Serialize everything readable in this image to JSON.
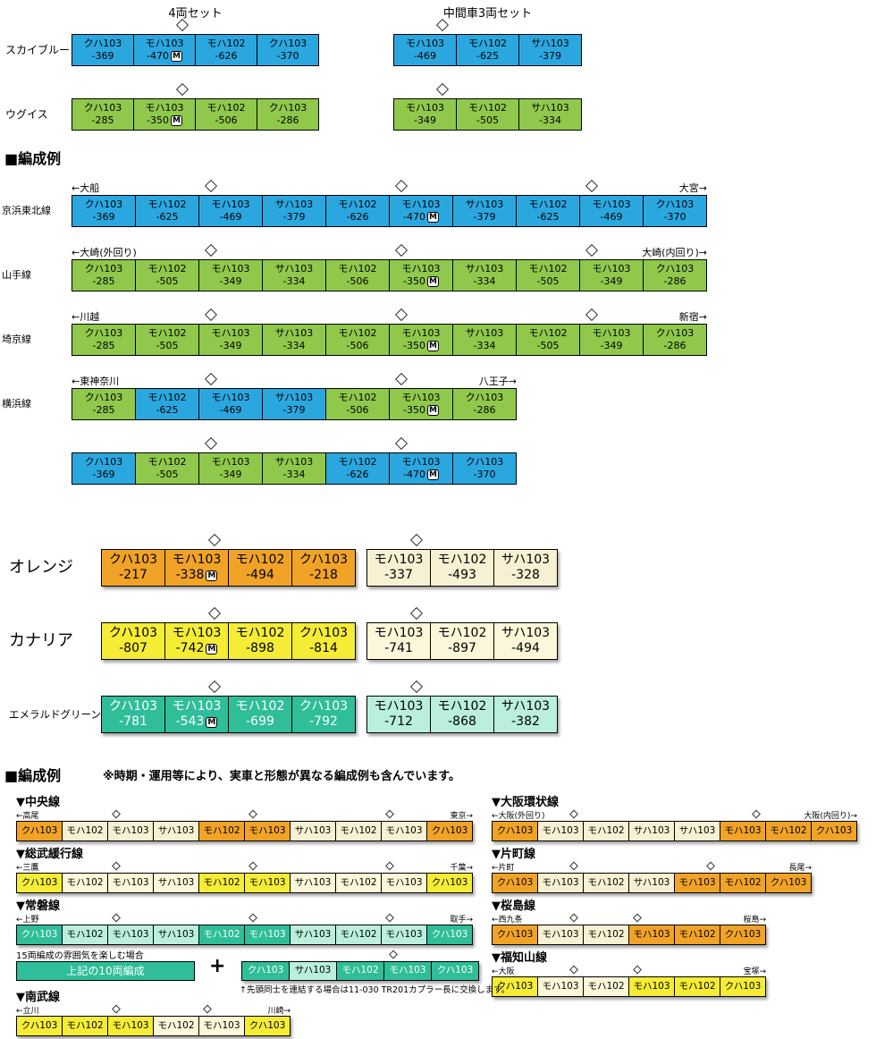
{
  "motor_badge": "M",
  "colors": {
    "skyblue": "#2BA7E0",
    "uguisu": "#8FC84B",
    "orange": "#F0A327",
    "orange_pale": "#F7F0D2",
    "canary": "#F5EC35",
    "canary_pale": "#FBF7D8",
    "emerald": "#2FBE99",
    "emerald_pale": "#B9EFDC"
  },
  "top_section": {
    "set4_header": "4両セット",
    "set3_header": "中間車3両セット",
    "rows": [
      {
        "label": "スカイブルー",
        "color": "skyblue",
        "set4": [
          {
            "type": "クハ103",
            "num": "-369"
          },
          {
            "type": "モハ103",
            "num": "-470",
            "m": true,
            "pan": true
          },
          {
            "type": "モハ102",
            "num": "-626"
          },
          {
            "type": "クハ103",
            "num": "-370"
          }
        ],
        "set3": [
          {
            "type": "モハ103",
            "num": "-469",
            "pan": true
          },
          {
            "type": "モハ102",
            "num": "-625"
          },
          {
            "type": "サハ103",
            "num": "-379"
          }
        ]
      },
      {
        "label": "ウグイス",
        "color": "uguisu",
        "set4": [
          {
            "type": "クハ103",
            "num": "-285"
          },
          {
            "type": "モハ103",
            "num": "-350",
            "m": true,
            "pan": true
          },
          {
            "type": "モハ102",
            "num": "-506"
          },
          {
            "type": "クハ103",
            "num": "-286"
          }
        ],
        "set3": [
          {
            "type": "モハ103",
            "num": "-349",
            "pan": true
          },
          {
            "type": "モハ102",
            "num": "-505"
          },
          {
            "type": "サハ103",
            "num": "-334"
          }
        ]
      }
    ]
  },
  "formation_section": {
    "heading": "■編成例",
    "rows": [
      {
        "label": "京浜東北線",
        "left_end": "←大船",
        "right_end": "大宮→",
        "cars": [
          {
            "type": "クハ103",
            "num": "-369",
            "color": "skyblue"
          },
          {
            "type": "モハ102",
            "num": "-625",
            "color": "skyblue"
          },
          {
            "type": "モハ103",
            "num": "-469",
            "color": "skyblue",
            "pan": true
          },
          {
            "type": "サハ103",
            "num": "-379",
            "color": "skyblue"
          },
          {
            "type": "モハ102",
            "num": "-626",
            "color": "skyblue"
          },
          {
            "type": "モハ103",
            "num": "-470",
            "color": "skyblue",
            "m": true,
            "pan": true
          },
          {
            "type": "サハ103",
            "num": "-379",
            "color": "skyblue"
          },
          {
            "type": "モハ102",
            "num": "-625",
            "color": "skyblue"
          },
          {
            "type": "モハ103",
            "num": "-469",
            "color": "skyblue",
            "pan": true
          },
          {
            "type": "クハ103",
            "num": "-370",
            "color": "skyblue"
          }
        ]
      },
      {
        "label": "山手線",
        "left_end": "←大崎(外回り)",
        "right_end": "大崎(内回り)→",
        "cars": [
          {
            "type": "クハ103",
            "num": "-285",
            "color": "uguisu"
          },
          {
            "type": "モハ102",
            "num": "-505",
            "color": "uguisu"
          },
          {
            "type": "モハ103",
            "num": "-349",
            "color": "uguisu",
            "pan": true
          },
          {
            "type": "サハ103",
            "num": "-334",
            "color": "uguisu"
          },
          {
            "type": "モハ102",
            "num": "-506",
            "color": "uguisu"
          },
          {
            "type": "モハ103",
            "num": "-350",
            "color": "uguisu",
            "m": true,
            "pan": true
          },
          {
            "type": "サハ103",
            "num": "-334",
            "color": "uguisu"
          },
          {
            "type": "モハ102",
            "num": "-505",
            "color": "uguisu"
          },
          {
            "type": "モハ103",
            "num": "-349",
            "color": "uguisu",
            "pan": true
          },
          {
            "type": "クハ103",
            "num": "-286",
            "color": "uguisu"
          }
        ]
      },
      {
        "label": "埼京線",
        "left_end": "←川越",
        "right_end": "新宿→",
        "cars": [
          {
            "type": "クハ103",
            "num": "-285",
            "color": "uguisu"
          },
          {
            "type": "モハ102",
            "num": "-505",
            "color": "uguisu"
          },
          {
            "type": "モハ103",
            "num": "-349",
            "color": "uguisu",
            "pan": true
          },
          {
            "type": "サハ103",
            "num": "-334",
            "color": "uguisu"
          },
          {
            "type": "モハ102",
            "num": "-506",
            "color": "uguisu"
          },
          {
            "type": "モハ103",
            "num": "-350",
            "color": "uguisu",
            "m": true,
            "pan": true
          },
          {
            "type": "サハ103",
            "num": "-334",
            "color": "uguisu"
          },
          {
            "type": "モハ102",
            "num": "-505",
            "color": "uguisu"
          },
          {
            "type": "モハ103",
            "num": "-349",
            "color": "uguisu",
            "pan": true
          },
          {
            "type": "クハ103",
            "num": "-286",
            "color": "uguisu"
          }
        ]
      },
      {
        "label": "横浜線",
        "left_end": "←東神奈川",
        "right_end": "八王子→",
        "cars": [
          {
            "type": "クハ103",
            "num": "-285",
            "color": "uguisu"
          },
          {
            "type": "モハ102",
            "num": "-625",
            "color": "skyblue"
          },
          {
            "type": "モハ103",
            "num": "-469",
            "color": "skyblue",
            "pan": true
          },
          {
            "type": "サハ103",
            "num": "-379",
            "color": "skyblue"
          },
          {
            "type": "モハ102",
            "num": "-506",
            "color": "uguisu"
          },
          {
            "type": "モハ103",
            "num": "-350",
            "color": "uguisu",
            "m": true,
            "pan": true
          },
          {
            "type": "クハ103",
            "num": "-286",
            "color": "uguisu"
          }
        ]
      },
      {
        "label": "",
        "left_end": "",
        "right_end": "",
        "cars": [
          {
            "type": "クハ103",
            "num": "-369",
            "color": "skyblue"
          },
          {
            "type": "モハ102",
            "num": "-505",
            "color": "uguisu"
          },
          {
            "type": "モハ103",
            "num": "-349",
            "color": "uguisu",
            "pan": true
          },
          {
            "type": "サハ103",
            "num": "-334",
            "color": "uguisu"
          },
          {
            "type": "モハ102",
            "num": "-626",
            "color": "skyblue"
          },
          {
            "type": "モハ103",
            "num": "-470",
            "color": "skyblue",
            "m": true,
            "pan": true
          },
          {
            "type": "クハ103",
            "num": "-370",
            "color": "skyblue"
          }
        ]
      }
    ]
  },
  "color_sets_section": {
    "rows": [
      {
        "label": "オレンジ",
        "color": "orange",
        "pale": "orange_pale",
        "set4": [
          {
            "type": "クハ103",
            "num": "-217"
          },
          {
            "type": "モハ103",
            "num": "-338",
            "m": true,
            "pan": true
          },
          {
            "type": "モハ102",
            "num": "-494"
          },
          {
            "type": "クハ103",
            "num": "-218"
          }
        ],
        "set3": [
          {
            "type": "モハ103",
            "num": "-337",
            "pan": true
          },
          {
            "type": "モハ102",
            "num": "-493"
          },
          {
            "type": "サハ103",
            "num": "-328"
          }
        ]
      },
      {
        "label": "カナリア",
        "color": "canary",
        "pale": "canary_pale",
        "set4": [
          {
            "type": "クハ103",
            "num": "-807"
          },
          {
            "type": "モハ103",
            "num": "-742",
            "m": true,
            "pan": true
          },
          {
            "type": "モハ102",
            "num": "-898"
          },
          {
            "type": "クハ103",
            "num": "-814"
          }
        ],
        "set3": [
          {
            "type": "モハ103",
            "num": "-741",
            "pan": true
          },
          {
            "type": "モハ102",
            "num": "-897"
          },
          {
            "type": "サハ103",
            "num": "-494"
          }
        ]
      },
      {
        "label": "エメラルドグリーン",
        "color": "emerald",
        "pale": "emerald_pale",
        "set4": [
          {
            "type": "クハ103",
            "num": "-781"
          },
          {
            "type": "モハ103",
            "num": "-543",
            "m": true,
            "pan": true
          },
          {
            "type": "モハ102",
            "num": "-699"
          },
          {
            "type": "クハ103",
            "num": "-792"
          }
        ],
        "set3": [
          {
            "type": "モハ103",
            "num": "-712",
            "pan": true
          },
          {
            "type": "モハ102",
            "num": "-868"
          },
          {
            "type": "サハ103",
            "num": "-382"
          }
        ]
      }
    ]
  },
  "example_section": {
    "heading": "■編成例",
    "note": "※時期・運用等により、実車と形態が異なる編成例も含んでいます。",
    "left_column": [
      {
        "title": "▼中央線",
        "left_end": "←高尾",
        "right_end": "東京→",
        "scheme": "orange",
        "cars": [
          {
            "type": "クハ103",
            "shade": "main"
          },
          {
            "type": "モハ102",
            "shade": "pale"
          },
          {
            "type": "モハ103",
            "shade": "pale",
            "pan": true
          },
          {
            "type": "サハ103",
            "shade": "pale"
          },
          {
            "type": "モハ102",
            "shade": "main"
          },
          {
            "type": "モハ103",
            "shade": "main",
            "pan": true
          },
          {
            "type": "サハ103",
            "shade": "pale"
          },
          {
            "type": "モハ102",
            "shade": "pale"
          },
          {
            "type": "モハ103",
            "shade": "pale",
            "pan": true
          },
          {
            "type": "クハ103",
            "shade": "main"
          }
        ]
      },
      {
        "title": "▼総武緩行線",
        "left_end": "←三鷹",
        "right_end": "千葉→",
        "scheme": "canary",
        "cars": [
          {
            "type": "クハ103",
            "shade": "main"
          },
          {
            "type": "モハ102",
            "shade": "pale"
          },
          {
            "type": "モハ103",
            "shade": "pale",
            "pan": true
          },
          {
            "type": "サハ103",
            "shade": "pale"
          },
          {
            "type": "モハ102",
            "shade": "main"
          },
          {
            "type": "モハ103",
            "shade": "main",
            "pan": true
          },
          {
            "type": "サハ103",
            "shade": "pale"
          },
          {
            "type": "モハ102",
            "shade": "pale"
          },
          {
            "type": "モハ103",
            "shade": "pale",
            "pan": true
          },
          {
            "type": "クハ103",
            "shade": "main"
          }
        ]
      },
      {
        "title": "▼常磐線",
        "left_end": "←上野",
        "right_end": "取手→",
        "scheme": "emerald",
        "cars": [
          {
            "type": "クハ103",
            "shade": "main"
          },
          {
            "type": "モハ102",
            "shade": "pale"
          },
          {
            "type": "モハ103",
            "shade": "pale",
            "pan": true
          },
          {
            "type": "サハ103",
            "shade": "pale"
          },
          {
            "type": "モハ102",
            "shade": "main"
          },
          {
            "type": "モハ103",
            "shade": "main",
            "pan": true
          },
          {
            "type": "サハ103",
            "shade": "pale"
          },
          {
            "type": "モハ102",
            "shade": "pale"
          },
          {
            "type": "モハ103",
            "shade": "pale",
            "pan": true
          },
          {
            "type": "クハ103",
            "shade": "main"
          }
        ],
        "extra": {
          "note": "15両編成の雰囲気を楽しむ場合",
          "combined_label": "上記の10両編成",
          "plus": "+",
          "add_cars": [
            {
              "type": "クハ103",
              "shade": "main"
            },
            {
              "type": "サハ103",
              "shade": "pale"
            },
            {
              "type": "モハ102",
              "shade": "main"
            },
            {
              "type": "モハ103",
              "shade": "main",
              "pan": true
            },
            {
              "type": "クハ103",
              "shade": "main"
            }
          ],
          "footnote": "↑先頭同士を連結する場合は11-030 TR201カプラー長に交換します。"
        }
      },
      {
        "title": "▼南武線",
        "left_end": "←立川",
        "right_end": "川崎→",
        "scheme": "canary",
        "cars": [
          {
            "type": "クハ103",
            "shade": "main"
          },
          {
            "type": "モハ102",
            "shade": "main"
          },
          {
            "type": "モハ103",
            "shade": "main",
            "pan": true
          },
          {
            "type": "モハ102",
            "shade": "pale"
          },
          {
            "type": "モハ103",
            "shade": "pale",
            "pan": true
          },
          {
            "type": "クハ103",
            "shade": "main"
          }
        ]
      }
    ],
    "right_column": [
      {
        "title": "▼大阪環状線",
        "left_end": "←大阪(外回り)",
        "right_end": "大阪(内回り)→",
        "scheme": "orange",
        "cars": [
          {
            "type": "クハ103",
            "shade": "main"
          },
          {
            "type": "モハ103",
            "shade": "pale",
            "pan": true
          },
          {
            "type": "モハ102",
            "shade": "pale"
          },
          {
            "type": "サハ103",
            "shade": "pale"
          },
          {
            "type": "サハ103",
            "shade": "pale"
          },
          {
            "type": "モハ103",
            "shade": "main",
            "pan": true
          },
          {
            "type": "モハ102",
            "shade": "main"
          },
          {
            "type": "クハ103",
            "shade": "main"
          }
        ]
      },
      {
        "title": "▼片町線",
        "left_end": "←片町",
        "right_end": "長尾→",
        "scheme": "orange",
        "cars": [
          {
            "type": "クハ103",
            "shade": "main"
          },
          {
            "type": "モハ103",
            "shade": "pale",
            "pan": true
          },
          {
            "type": "モハ102",
            "shade": "pale"
          },
          {
            "type": "サハ103",
            "shade": "pale"
          },
          {
            "type": "モハ103",
            "shade": "main",
            "pan": true
          },
          {
            "type": "モハ102",
            "shade": "main"
          },
          {
            "type": "クハ103",
            "shade": "main"
          }
        ]
      },
      {
        "title": "▼桜島線",
        "left_end": "←西九条",
        "right_end": "桜島→",
        "scheme": "orange",
        "cars": [
          {
            "type": "クハ103",
            "shade": "main"
          },
          {
            "type": "モハ103",
            "shade": "pale",
            "pan": true
          },
          {
            "type": "モハ102",
            "shade": "pale"
          },
          {
            "type": "モハ103",
            "shade": "main",
            "pan": true
          },
          {
            "type": "モハ102",
            "shade": "main"
          },
          {
            "type": "クハ103",
            "shade": "main"
          }
        ]
      },
      {
        "title": "▼福知山線",
        "left_end": "←大阪",
        "right_end": "宝塚→",
        "scheme": "canary",
        "cars": [
          {
            "type": "クハ103",
            "shade": "main"
          },
          {
            "type": "モハ103",
            "shade": "pale",
            "pan": true
          },
          {
            "type": "モハ102",
            "shade": "pale"
          },
          {
            "type": "モハ103",
            "shade": "main",
            "pan": true
          },
          {
            "type": "モハ102",
            "shade": "main"
          },
          {
            "type": "クハ103",
            "shade": "main"
          }
        ]
      }
    ]
  }
}
